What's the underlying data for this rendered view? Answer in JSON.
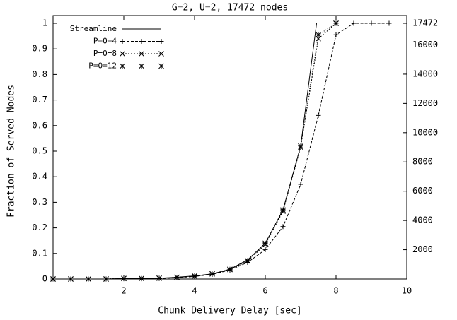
{
  "chart_data": {
    "type": "line",
    "title": "G=2, U=2, 17472 nodes",
    "x_label": "Chunk Delivery Delay [sec]",
    "y_label": "Fraction of Served Nodes",
    "xlim": [
      0,
      10
    ],
    "xticks": [
      2,
      4,
      6,
      8,
      10
    ],
    "ylim": [
      0,
      1
    ],
    "yticks": [
      0,
      0.1,
      0.2,
      0.3,
      0.4,
      0.5,
      0.6,
      0.7,
      0.8,
      0.9,
      1
    ],
    "y2lim": [
      0,
      17472
    ],
    "y2ticks": [
      2000,
      4000,
      6000,
      8000,
      10000,
      12000,
      14000,
      16000,
      17472
    ],
    "legend": "top-left",
    "series": [
      {
        "name": "Streamline",
        "color": "#000000",
        "dash": null,
        "marker": null,
        "x": [
          0,
          0.5,
          1,
          1.5,
          2,
          2.5,
          3,
          3.5,
          4,
          4.5,
          5,
          5.5,
          6,
          6.5,
          7,
          7.45
        ],
        "values": [
          0,
          0,
          0,
          0,
          0.002,
          0.002,
          0.003,
          0.007,
          0.012,
          0.02,
          0.038,
          0.075,
          0.14,
          0.27,
          0.52,
          1
        ]
      },
      {
        "name": "P=O=4",
        "color": "#000000",
        "dash": "4 2",
        "marker": "+",
        "x": [
          0,
          0.5,
          1,
          1.5,
          2,
          2.5,
          3,
          3.5,
          4,
          4.5,
          5,
          5.5,
          6,
          6.5,
          7,
          7.5,
          8,
          8.5,
          9,
          9.5
        ],
        "values": [
          0,
          0,
          0,
          0,
          0.001,
          0.001,
          0.002,
          0.005,
          0.01,
          0.018,
          0.035,
          0.065,
          0.115,
          0.205,
          0.37,
          0.64,
          0.955,
          1,
          1,
          1
        ]
      },
      {
        "name": "P=O=8",
        "color": "#000000",
        "dash": "2 2",
        "marker": "x",
        "x": [
          0,
          0.5,
          1,
          1.5,
          2,
          2.5,
          3,
          3.5,
          4,
          4.5,
          5,
          5.5,
          6,
          6.5,
          7,
          7.5,
          8
        ],
        "values": [
          0,
          0,
          0,
          0,
          0.002,
          0.002,
          0.003,
          0.006,
          0.011,
          0.02,
          0.037,
          0.07,
          0.135,
          0.265,
          0.515,
          0.94,
          1
        ]
      },
      {
        "name": "P=O=12",
        "color": "#000000",
        "dash": "1 2",
        "marker": "*",
        "x": [
          0,
          0.5,
          1,
          1.5,
          2,
          2.5,
          3,
          3.5,
          4,
          4.5,
          5,
          5.5,
          6,
          6.5,
          7,
          7.5,
          8
        ],
        "values": [
          0,
          0,
          0,
          0,
          0.002,
          0.002,
          0.003,
          0.007,
          0.012,
          0.02,
          0.038,
          0.072,
          0.14,
          0.27,
          0.52,
          0.955,
          1
        ]
      }
    ]
  }
}
